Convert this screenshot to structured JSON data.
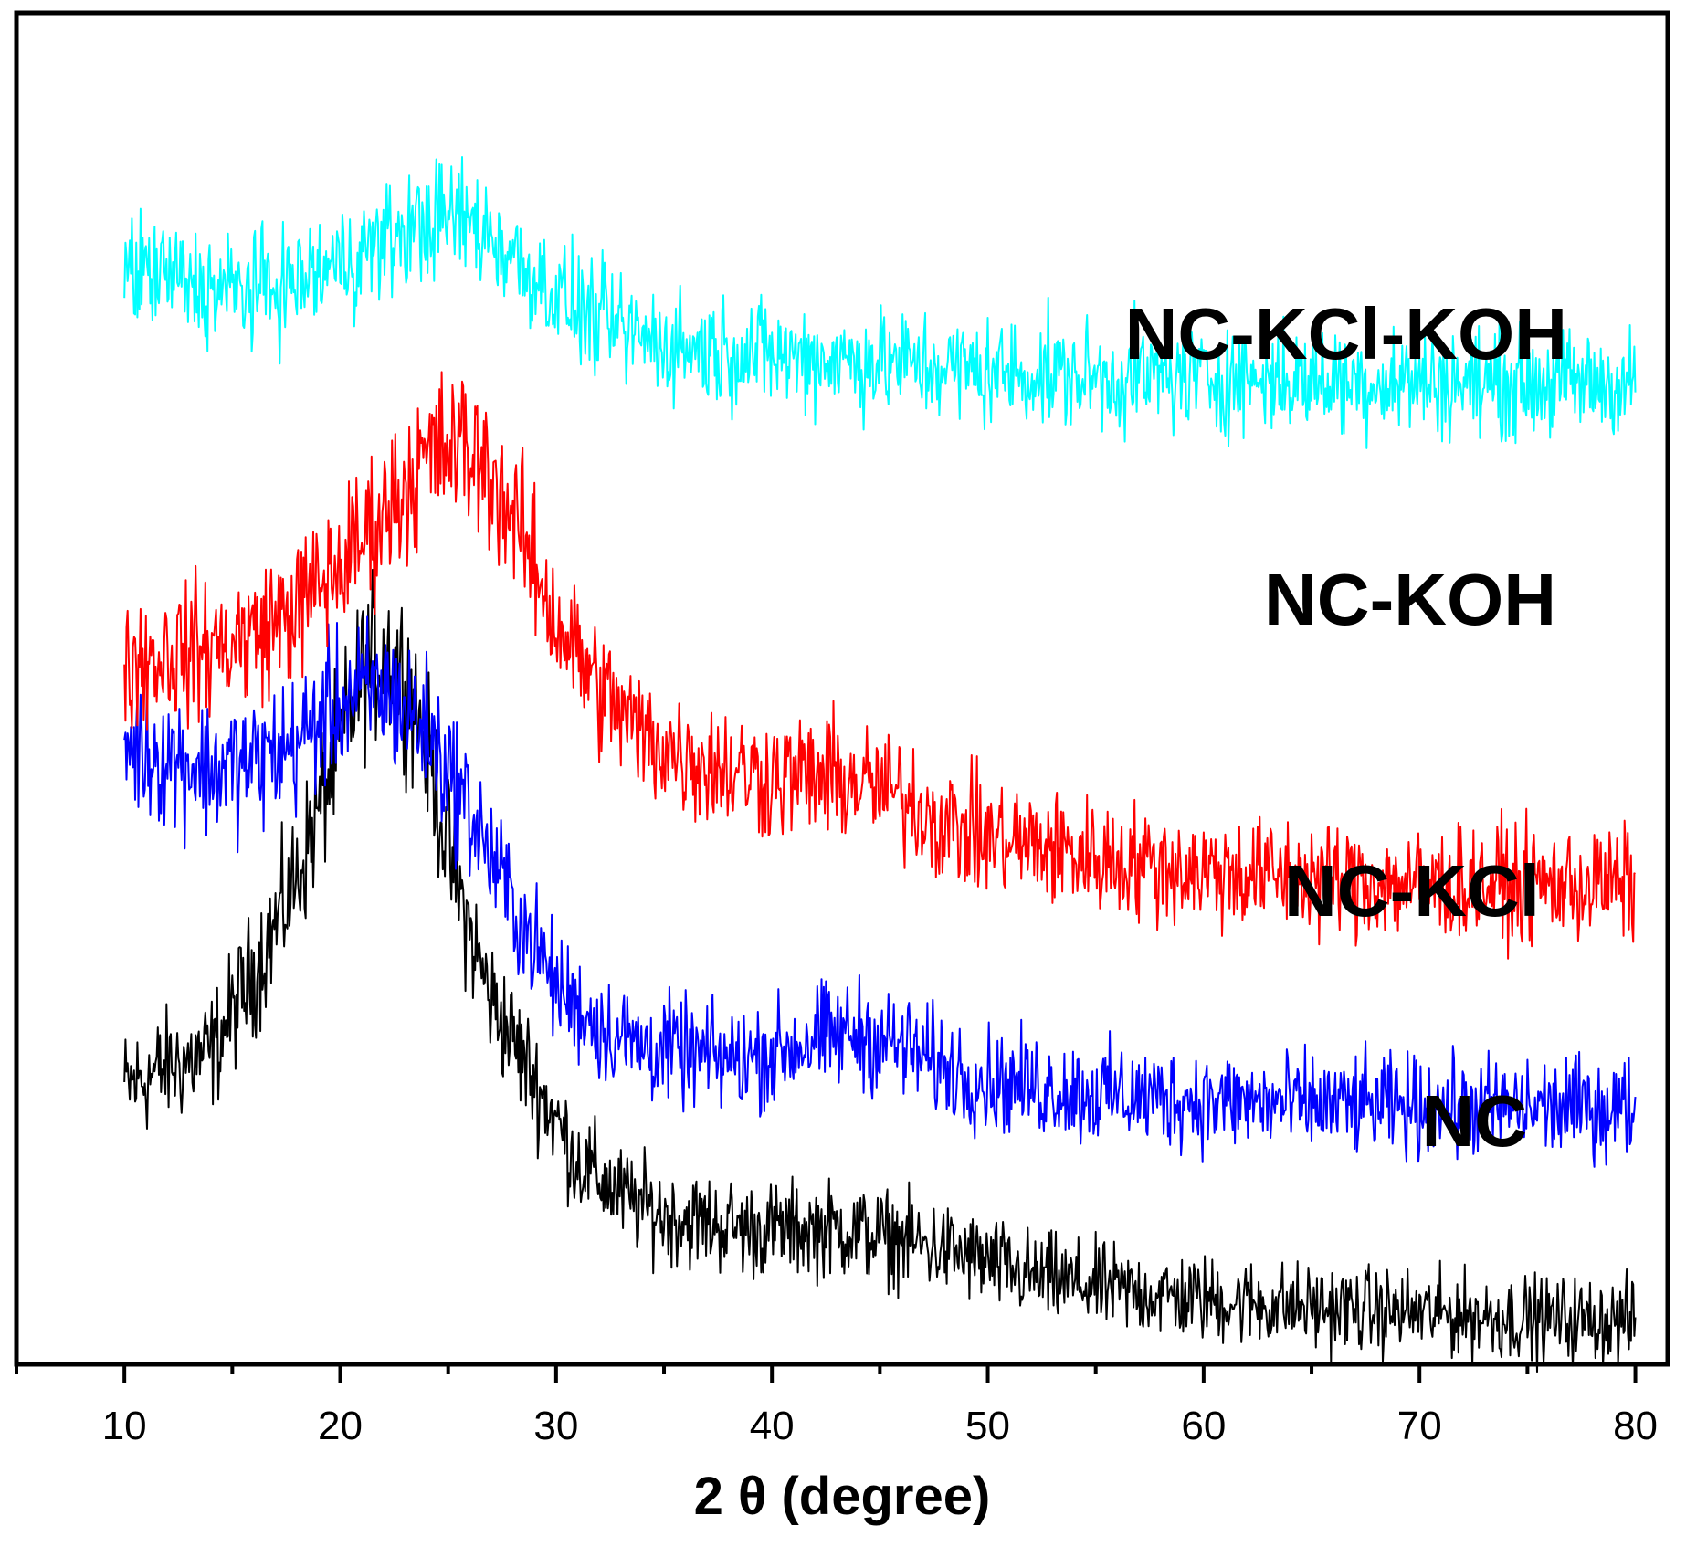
{
  "chart_data": {
    "type": "line",
    "title": "",
    "xlabel": "2 θ (degree)",
    "ylabel": "",
    "xlim": [
      5,
      81.5
    ],
    "ylim": [
      0,
      100
    ],
    "x_ticks": [
      10,
      20,
      30,
      40,
      50,
      60,
      70,
      80
    ],
    "x_tick_labels": [
      "10",
      "20",
      "30",
      "40",
      "50",
      "60",
      "70",
      "80"
    ],
    "x_minor_ticks": [
      5,
      15,
      25,
      35,
      45,
      55,
      65,
      75
    ],
    "y_axis_visible": false,
    "grid": false,
    "legend": "inline labels at right",
    "series": [
      {
        "name": "NC",
        "label": "NC",
        "color": "#000000",
        "noise": 2.4,
        "points": [
          [
            10,
            20.5
          ],
          [
            12,
            22
          ],
          [
            14,
            23
          ],
          [
            16,
            29
          ],
          [
            18,
            36
          ],
          [
            20,
            46
          ],
          [
            21,
            51
          ],
          [
            22,
            53
          ],
          [
            23,
            51
          ],
          [
            24,
            46
          ],
          [
            25,
            38
          ],
          [
            26,
            32
          ],
          [
            27,
            27
          ],
          [
            28,
            24
          ],
          [
            29,
            21
          ],
          [
            30,
            18
          ],
          [
            31,
            15
          ],
          [
            33,
            12.5
          ],
          [
            35,
            11
          ],
          [
            37,
            10.5
          ],
          [
            39,
            10
          ],
          [
            41,
            10
          ],
          [
            43,
            10
          ],
          [
            45,
            9.5
          ],
          [
            48,
            8.5
          ],
          [
            52,
            6.5
          ],
          [
            56,
            5.5
          ],
          [
            60,
            4.8
          ],
          [
            65,
            4.2
          ],
          [
            70,
            3.8
          ],
          [
            75,
            3.4
          ],
          [
            80,
            3.2
          ]
        ]
      },
      {
        "name": "NC-KCl",
        "label": "NC-KCl",
        "color": "#0000ff",
        "noise": 2.2,
        "points": [
          [
            10,
            46
          ],
          [
            12,
            45
          ],
          [
            14,
            44
          ],
          [
            16,
            44.5
          ],
          [
            18,
            46
          ],
          [
            20,
            49
          ],
          [
            22,
            50
          ],
          [
            24,
            47
          ],
          [
            26,
            41
          ],
          [
            28,
            34
          ],
          [
            30,
            28
          ],
          [
            32,
            25
          ],
          [
            34,
            23.5
          ],
          [
            36,
            23
          ],
          [
            38,
            22.5
          ],
          [
            40,
            23
          ],
          [
            42,
            24
          ],
          [
            44,
            24.5
          ],
          [
            46,
            23.5
          ],
          [
            48,
            22
          ],
          [
            50,
            21
          ],
          [
            55,
            20
          ],
          [
            60,
            19.5
          ],
          [
            65,
            19.2
          ],
          [
            70,
            19
          ],
          [
            75,
            19
          ],
          [
            80,
            19
          ]
        ]
      },
      {
        "name": "NC-KOH",
        "label": "NC-KOH",
        "color": "#ff0000",
        "noise": 2.0,
        "points": [
          [
            10,
            52
          ],
          [
            12,
            52.5
          ],
          [
            14,
            53
          ],
          [
            16,
            54
          ],
          [
            18,
            56
          ],
          [
            20,
            59
          ],
          [
            22,
            63
          ],
          [
            24,
            67
          ],
          [
            25.5,
            68
          ],
          [
            27,
            66
          ],
          [
            28.5,
            61
          ],
          [
            30,
            55
          ],
          [
            32,
            50
          ],
          [
            34,
            46.5
          ],
          [
            36,
            45
          ],
          [
            38,
            44
          ],
          [
            40,
            43.5
          ],
          [
            42,
            43.5
          ],
          [
            44,
            43
          ],
          [
            46,
            42
          ],
          [
            48,
            40
          ],
          [
            50,
            39
          ],
          [
            55,
            37.5
          ],
          [
            60,
            36.5
          ],
          [
            65,
            36
          ],
          [
            70,
            35.5
          ],
          [
            75,
            35.5
          ],
          [
            80,
            35.5
          ]
        ]
      },
      {
        "name": "NC-KCl-KOH",
        "label": "NC-KCl-KOH",
        "color": "#00ffff",
        "noise": 1.3,
        "points": [
          [
            10,
            81
          ],
          [
            12,
            80.5
          ],
          [
            14,
            79.5
          ],
          [
            16,
            79.5
          ],
          [
            18,
            80
          ],
          [
            20,
            81.5
          ],
          [
            22,
            83
          ],
          [
            24,
            84.5
          ],
          [
            25.5,
            85
          ],
          [
            27,
            83.5
          ],
          [
            29,
            80.5
          ],
          [
            31,
            78
          ],
          [
            33,
            76.5
          ],
          [
            35,
            75.5
          ],
          [
            38,
            75
          ],
          [
            42,
            74.5
          ],
          [
            46,
            74
          ],
          [
            50,
            73.5
          ],
          [
            55,
            73
          ],
          [
            60,
            73
          ],
          [
            65,
            72.8
          ],
          [
            70,
            72.7
          ],
          [
            75,
            72.6
          ],
          [
            80,
            72.6
          ]
        ]
      }
    ]
  }
}
